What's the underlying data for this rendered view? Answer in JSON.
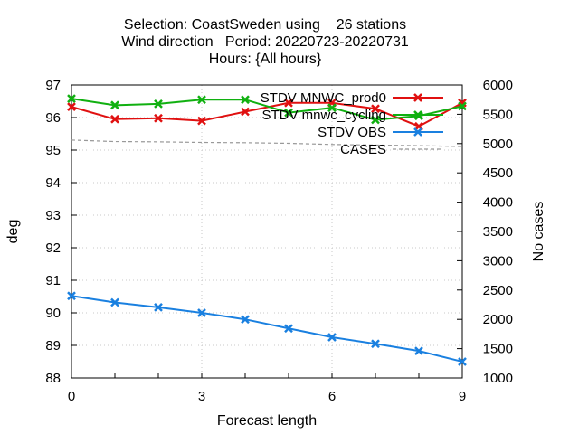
{
  "chart_data": {
    "type": "line",
    "title_lines": [
      "Selection: CoastSweden using    26 stations",
      "Wind direction   Period: 20220723-20220731",
      "Hours: {All hours}"
    ],
    "xlabel": "Forecast length",
    "ylabel": "deg",
    "y2label": "No cases",
    "xlim": [
      0,
      9
    ],
    "ylim": [
      88,
      97
    ],
    "y2lim": [
      1000,
      6000
    ],
    "xticks": [
      0,
      3,
      6,
      9
    ],
    "yticks": [
      88,
      89,
      90,
      91,
      92,
      93,
      94,
      95,
      96,
      97
    ],
    "y2ticks": [
      1000,
      1500,
      2000,
      2500,
      3000,
      3500,
      4000,
      4500,
      5000,
      5500,
      6000
    ],
    "grid": true,
    "legend_position": "top-right",
    "x": [
      0,
      1,
      2,
      3,
      4,
      5,
      6,
      7,
      8,
      9
    ],
    "series": [
      {
        "name": "STDV MNWC_prod0",
        "color": "#e01010",
        "axis": "y1",
        "marker": "x",
        "values": [
          96.33,
          95.95,
          95.98,
          95.9,
          96.18,
          96.45,
          96.45,
          96.27,
          95.73,
          96.45
        ]
      },
      {
        "name": "STDV mnwc_cycling",
        "color": "#10b010",
        "axis": "y1",
        "marker": "x",
        "values": [
          96.58,
          96.38,
          96.42,
          96.55,
          96.55,
          96.15,
          96.3,
          95.93,
          96.05,
          96.35
        ]
      },
      {
        "name": "STDV OBS",
        "color": "#1a80e0",
        "axis": "y1",
        "marker": "x",
        "values": [
          90.52,
          90.32,
          90.17,
          90.0,
          89.8,
          89.52,
          89.25,
          89.05,
          88.83,
          88.5
        ]
      },
      {
        "name": "CASES",
        "color": "#999999",
        "axis": "y2",
        "marker": "none",
        "dashed": true,
        "values": [
          5060,
          5035,
          5030,
          5020,
          5015,
          5005,
          4985,
          4975,
          4965,
          4950
        ]
      }
    ]
  }
}
